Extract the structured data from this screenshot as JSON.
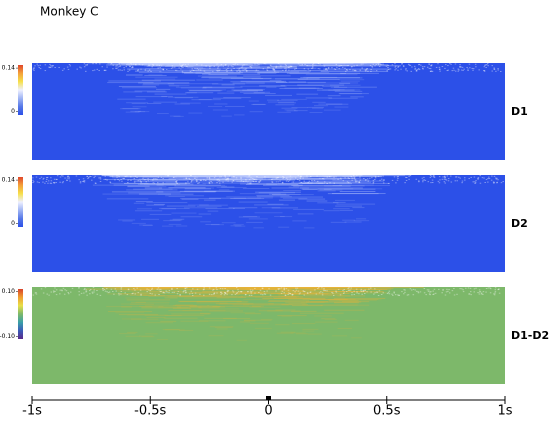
{
  "title": "Monkey C",
  "xaxis": {
    "xlim": [
      -1,
      1
    ],
    "xticks": [
      {
        "value": -1,
        "label": "-1s"
      },
      {
        "value": -0.5,
        "label": "-0.5s"
      },
      {
        "value": 0,
        "label": "0"
      },
      {
        "value": 0.5,
        "label": "0.5s"
      },
      {
        "value": 1,
        "label": "1s"
      }
    ]
  },
  "panels": [
    {
      "label": "D1",
      "base_color": "#2c50e8",
      "streak_color": "#c8d4ff",
      "clim": [
        -0.012,
        0.15
      ],
      "cticks": [
        0.14,
        0
      ],
      "colorbar": [
        "#e0462a",
        "#f4a23a",
        "#f6e04a",
        "#eef0ff",
        "#9fb4f4",
        "#5577e8",
        "#2c50e8"
      ]
    },
    {
      "label": "D2",
      "base_color": "#2c50e8",
      "streak_color": "#c8d4ff",
      "clim": [
        -0.012,
        0.15
      ],
      "cticks": [
        0.14,
        0
      ],
      "colorbar": [
        "#e0462a",
        "#f4a23a",
        "#f6e04a",
        "#eef0ff",
        "#9fb4f4",
        "#5577e8",
        "#2c50e8"
      ]
    },
    {
      "label": "D1-D2",
      "base_color": "#7db86a",
      "streak_color": "#e8b43a",
      "clim": [
        -0.11,
        0.11
      ],
      "cticks": [
        {
          "value": 0.1,
          "label": "0.10"
        },
        {
          "value": -0.1,
          "label": "-0.10"
        }
      ],
      "colorbar": [
        "#d8402a",
        "#f0a030",
        "#e8e048",
        "#7db86a",
        "#3aa0a8",
        "#3a5ab8",
        "#5a2a8a"
      ]
    }
  ]
}
